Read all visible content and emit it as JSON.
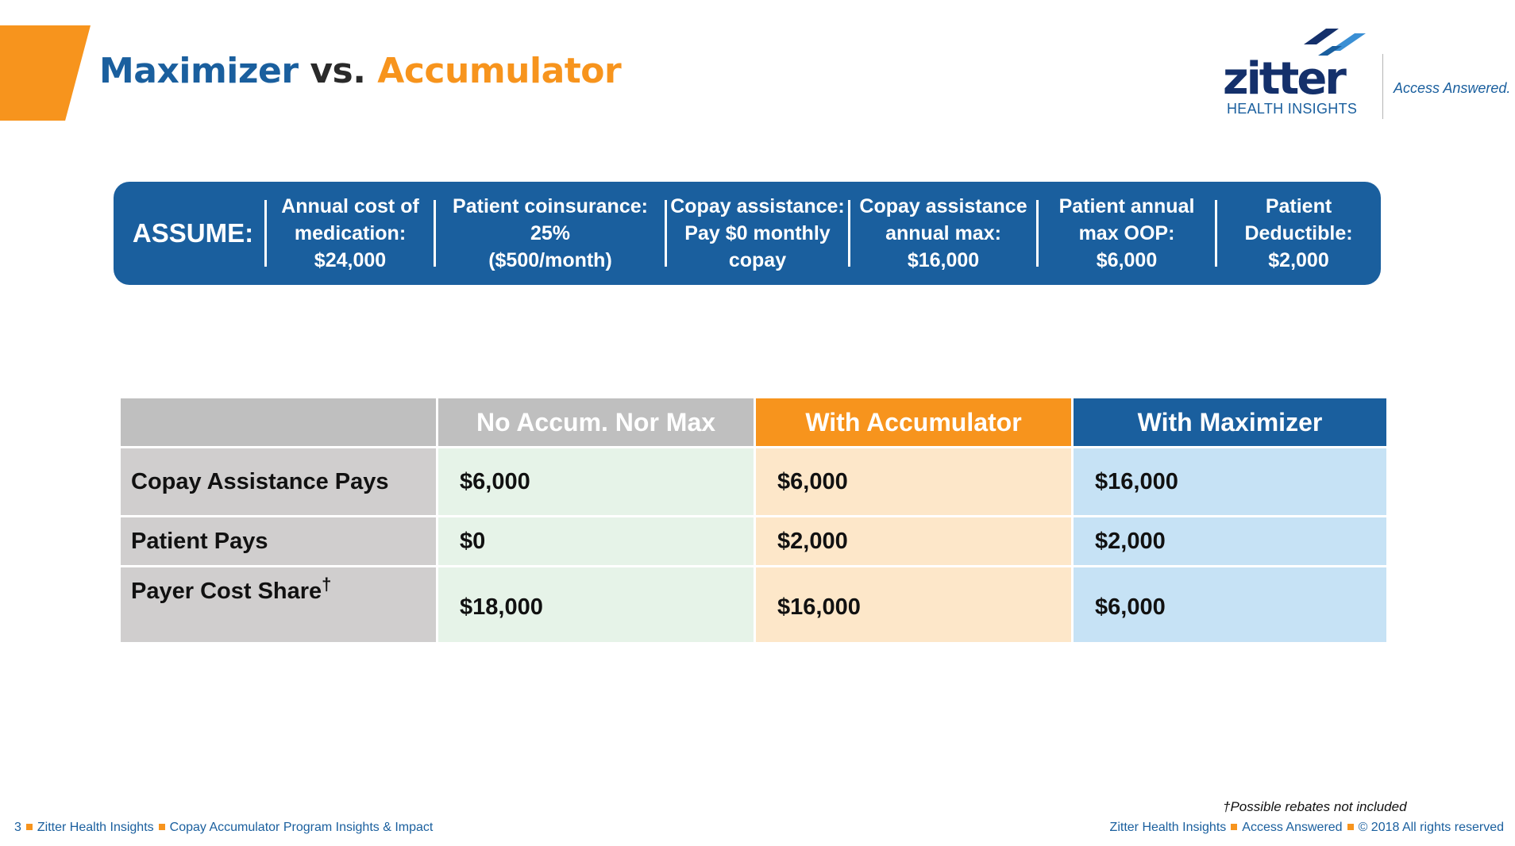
{
  "header": {
    "title_part1": "Maximizer",
    "title_part2": "vs.",
    "title_part3": "Accumulator",
    "logo_word": "zitter",
    "logo_sub": "HEALTH INSIGHTS",
    "tagline": "Access Answered."
  },
  "assume": {
    "label": "ASSUME:",
    "items": [
      "Annual cost of\nmedication:\n$24,000",
      "Patient coinsurance:\n25%\n($500/month)",
      "Copay assistance:\nPay $0 monthly\ncopay",
      "Copay assistance\nannual max:\n$16,000",
      "Patient annual\nmax OOP:\n$6,000",
      "Patient\nDeductible:\n$2,000"
    ]
  },
  "table": {
    "headers": [
      "",
      "No Accum. Nor Max",
      "With Accumulator",
      "With Maximizer"
    ],
    "rows": [
      {
        "label": "Copay Assistance Pays",
        "dagger": "",
        "values": [
          "$6,000",
          "$6,000",
          "$16,000"
        ]
      },
      {
        "label": "Patient Pays",
        "dagger": "",
        "values": [
          "$0",
          "$2,000",
          "$2,000"
        ]
      },
      {
        "label": "Payer Cost Share",
        "dagger": "†",
        "values": [
          "$18,000",
          "$16,000",
          "$6,000"
        ]
      }
    ]
  },
  "footnote": "†Possible rebates not included",
  "footer": {
    "page_number": "3",
    "left_1": "Zitter Health Insights",
    "left_2": "Copay Accumulator Program Insights & Impact",
    "right_1": "Zitter Health Insights",
    "right_2": "Access Answered",
    "right_3": "© 2018 All rights reserved"
  },
  "colors": {
    "brand_blue": "#1a5f9e",
    "brand_orange": "#f7941d",
    "logo_navy": "#14306b",
    "header_gray": "#bfbfbf",
    "label_gray": "#d0cece",
    "col_none_bg": "#e6f3e8",
    "col_acc_bg": "#fde7c9",
    "col_max_bg": "#c6e2f5"
  }
}
